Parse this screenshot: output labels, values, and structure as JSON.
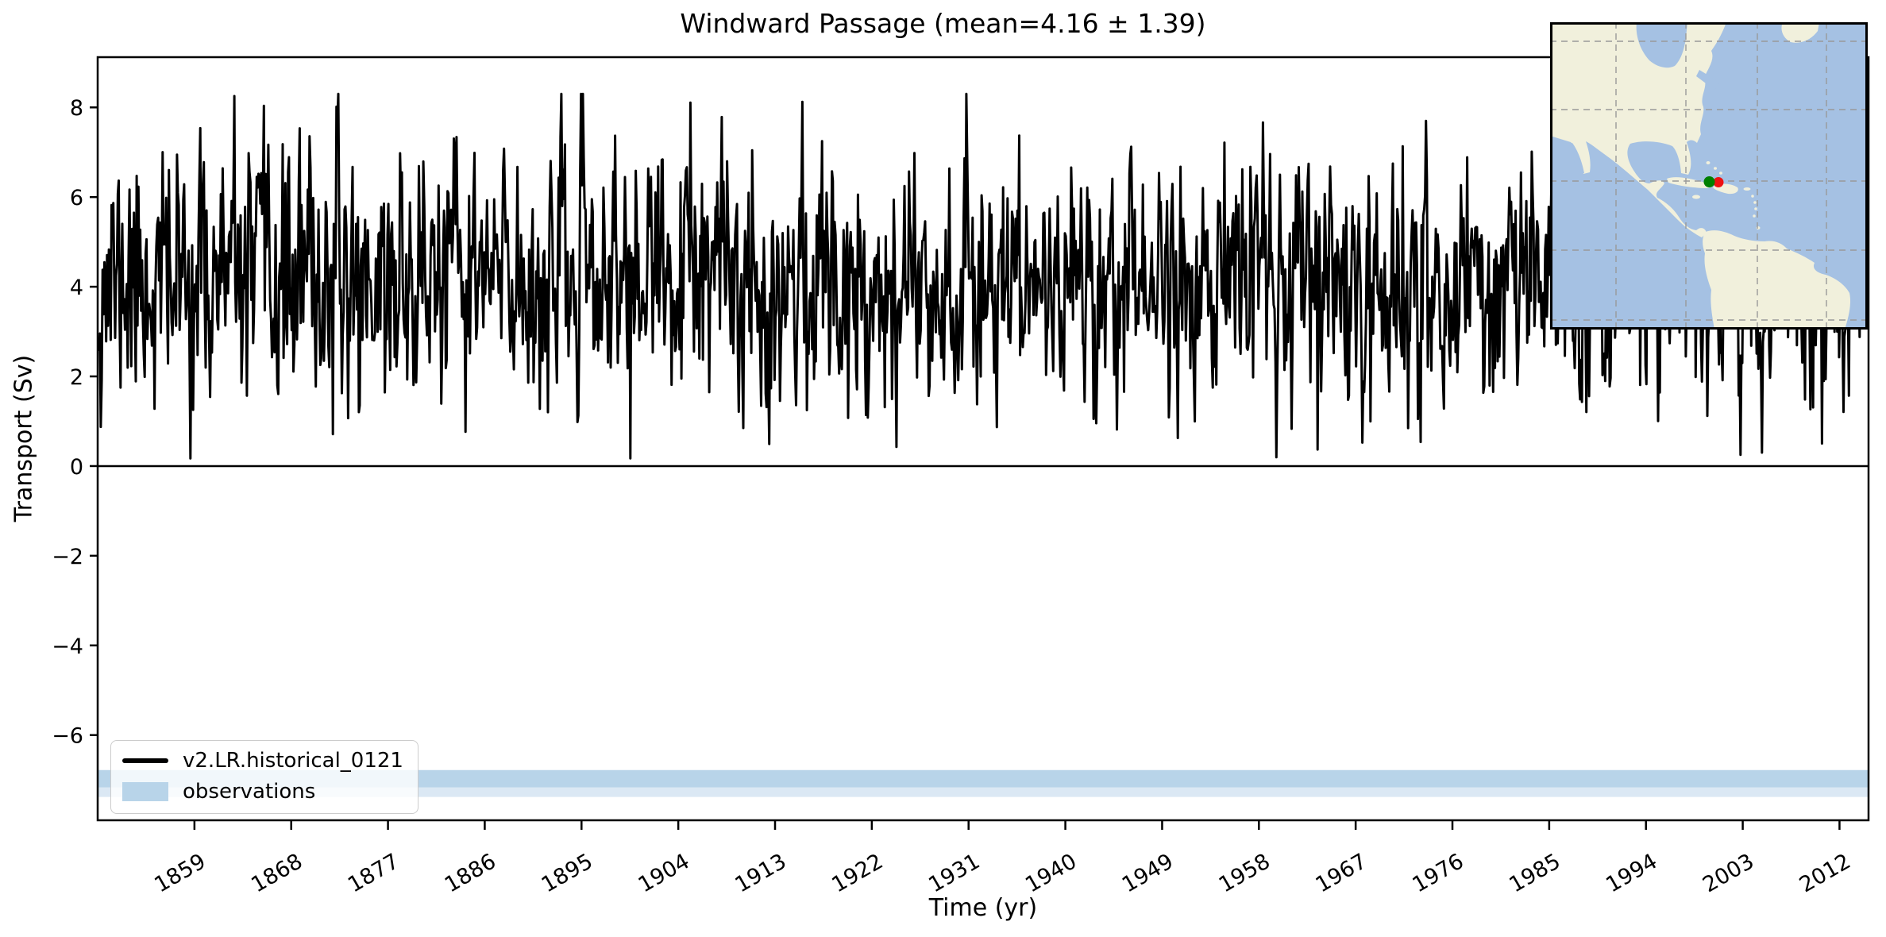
{
  "chart_data": {
    "type": "line",
    "title": "Windward Passage (mean=4.16 ± 1.39)",
    "xlabel": "Time (yr)",
    "ylabel": "Transport (Sv)",
    "xlim": [
      1850.0,
      2014.7
    ],
    "ylim": [
      -7.9,
      9.12
    ],
    "grid": false,
    "x_ticks": [
      1859,
      1868,
      1877,
      1886,
      1895,
      1904,
      1913,
      1922,
      1931,
      1940,
      1949,
      1958,
      1967,
      1976,
      1985,
      1994,
      2003,
      2012
    ],
    "x_tick_rotation_deg": 30,
    "y_tick_values": [
      8,
      6,
      4,
      2,
      0,
      -2,
      -4,
      -6
    ],
    "y_tick_labels": [
      "8",
      "6",
      "4",
      "2",
      "0",
      "−2",
      "−4",
      "−6"
    ],
    "zero_line": {
      "y": 0,
      "color": "#000000"
    },
    "series": [
      {
        "name": "v2.LR.historical_0121",
        "color": "#000000",
        "line_width": 3,
        "stats": {
          "start_year": 1850,
          "end_year": 2014,
          "samples_per_year": 12,
          "mean": 4.16,
          "std": 1.39,
          "min": 0.2,
          "max": 8.2
        },
        "gen": {
          "seed": 11,
          "phi": 0.3,
          "clip_min": 0.17,
          "clip_max": 8.3
        }
      }
    ],
    "observations_band": {
      "label": "observations",
      "core": {
        "y_from": -6.78,
        "y_to": -7.17,
        "color": "#b8d4e9"
      },
      "halo": {
        "y_from": -7.17,
        "y_to": -7.38,
        "color": "#dbe8f4"
      }
    },
    "legend": {
      "position": "lower left",
      "items": [
        {
          "label": "v2.LR.historical_0121",
          "swatch": "line",
          "color": "#000000"
        },
        {
          "label": "observations",
          "swatch": "patch",
          "color": "#b8d4e9"
        }
      ]
    },
    "inset_map": {
      "position": "upper right",
      "ocean_color": "#a5c1e3",
      "land_color": "#f1f0dc",
      "grid_color": "#999999",
      "border_color": "#000000",
      "marker_green_color": "#008000",
      "marker_red_color": "#ee1111"
    }
  }
}
